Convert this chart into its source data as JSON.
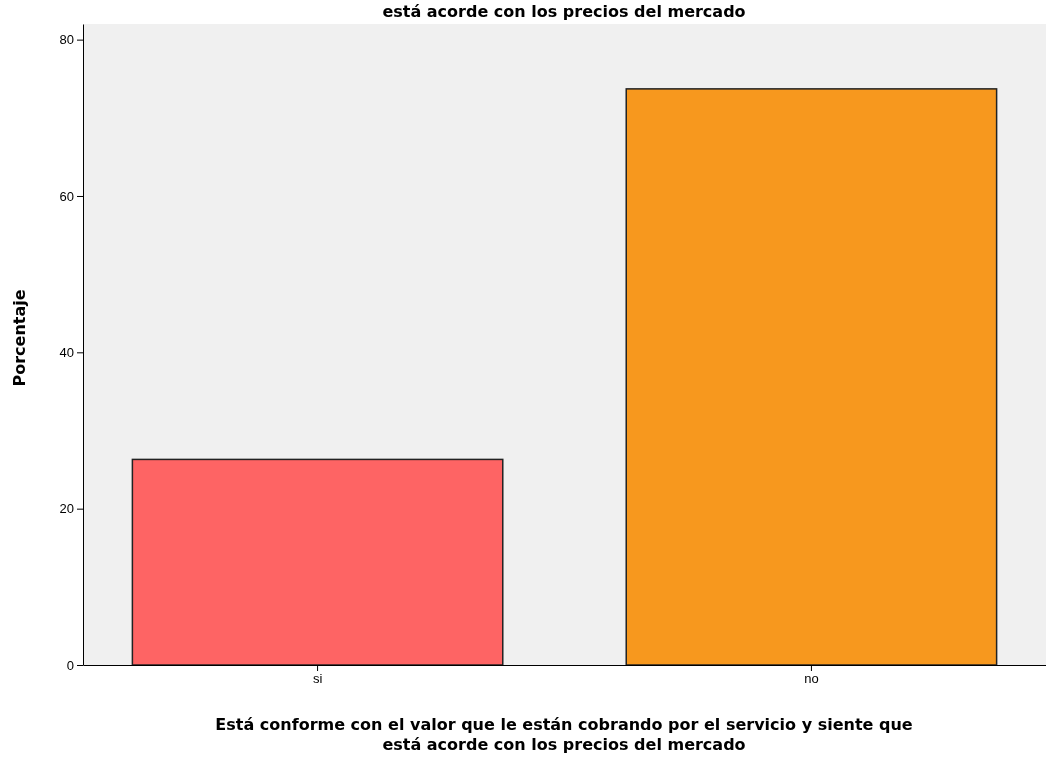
{
  "chart_data": {
    "type": "bar",
    "title": "está acorde con los precios del mercado",
    "xlabel": "Está conforme con el valor que le están cobrando por el servicio y siente que\nestá acorde con los precios del mercado",
    "ylabel": "Porcentaje",
    "categories": [
      "si",
      "no"
    ],
    "values": [
      26.3,
      73.7
    ],
    "colors": [
      "#fe6464",
      "#f7981e"
    ],
    "ylim": [
      0,
      82
    ],
    "yticks": [
      0,
      20,
      40,
      60,
      80
    ],
    "grid": false
  }
}
